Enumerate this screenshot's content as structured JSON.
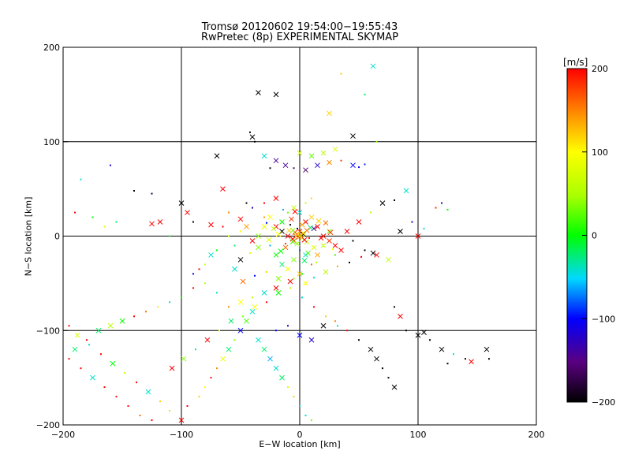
{
  "chart_data": {
    "type": "scatter",
    "title": "Tromsø 20120602 19:54:00−19:55:43",
    "subtitle": "RwPretec (8p) EXPERIMENTAL SKYMAP",
    "xlabel": "E−W location [km]",
    "ylabel": "N−S location [km]",
    "xlim": [
      -200,
      200
    ],
    "ylim": [
      -200,
      200
    ],
    "x_ticks": [
      -200,
      -100,
      0,
      100,
      200
    ],
    "y_ticks": [
      -200,
      -100,
      0,
      100,
      200
    ],
    "grid": true,
    "colorbar": {
      "label": "[m/s]",
      "range": [
        -200,
        200
      ],
      "ticks": [
        -200,
        -100,
        0,
        100,
        200
      ],
      "colormap": "rainbow: black → purple → blue → cyan → green → yellow → orange → red"
    },
    "markers": [
      "dot",
      "cross"
    ],
    "points": [
      [
        -35,
        152,
        -200,
        "x"
      ],
      [
        -20,
        150,
        -200,
        "x"
      ],
      [
        35,
        172,
        120,
        "d"
      ],
      [
        62,
        180,
        -40,
        "x"
      ],
      [
        25,
        130,
        120,
        "x"
      ],
      [
        45,
        106,
        -200,
        "x"
      ],
      [
        -42,
        110,
        -200,
        "d"
      ],
      [
        -40,
        105,
        -200,
        "x"
      ],
      [
        -70,
        85,
        -200,
        "x"
      ],
      [
        -38,
        100,
        -200,
        "d"
      ],
      [
        55,
        150,
        -20,
        "d"
      ],
      [
        65,
        100,
        40,
        "d"
      ],
      [
        -20,
        80,
        -140,
        "x"
      ],
      [
        -12,
        75,
        -140,
        "x"
      ],
      [
        -5,
        72,
        -160,
        "d"
      ],
      [
        5,
        70,
        -160,
        "x"
      ],
      [
        15,
        75,
        -120,
        "x"
      ],
      [
        25,
        78,
        150,
        "x"
      ],
      [
        35,
        80,
        180,
        "d"
      ],
      [
        45,
        75,
        -100,
        "x"
      ],
      [
        50,
        73,
        -110,
        "d"
      ],
      [
        55,
        76,
        -90,
        "d"
      ],
      [
        -30,
        85,
        -40,
        "x"
      ],
      [
        -25,
        72,
        -200,
        "d"
      ],
      [
        0,
        88,
        70,
        "x"
      ],
      [
        10,
        85,
        30,
        "x"
      ],
      [
        20,
        88,
        60,
        "x"
      ],
      [
        30,
        92,
        80,
        "x"
      ],
      [
        -160,
        75,
        -120,
        "d"
      ],
      [
        -185,
        60,
        -40,
        "d"
      ],
      [
        -140,
        48,
        -200,
        "d"
      ],
      [
        -125,
        45,
        -180,
        "d"
      ],
      [
        -100,
        35,
        -200,
        "x"
      ],
      [
        -95,
        25,
        200,
        "x"
      ],
      [
        -90,
        15,
        -200,
        "d"
      ],
      [
        -118,
        15,
        200,
        "x"
      ],
      [
        -125,
        13,
        200,
        "x"
      ],
      [
        -110,
        0,
        0,
        "d"
      ],
      [
        -65,
        50,
        200,
        "x"
      ],
      [
        -75,
        12,
        200,
        "x"
      ],
      [
        -50,
        18,
        200,
        "x"
      ],
      [
        -60,
        25,
        150,
        "d"
      ],
      [
        -45,
        35,
        -200,
        "d"
      ],
      [
        -40,
        30,
        -120,
        "d"
      ],
      [
        -30,
        35,
        200,
        "d"
      ],
      [
        -25,
        20,
        100,
        "x"
      ],
      [
        -20,
        10,
        200,
        "x"
      ],
      [
        -15,
        5,
        -200,
        "x"
      ],
      [
        -10,
        0,
        200,
        "x"
      ],
      [
        -5,
        -5,
        150,
        "x"
      ],
      [
        0,
        5,
        180,
        "x"
      ],
      [
        5,
        15,
        200,
        "x"
      ],
      [
        10,
        20,
        120,
        "x"
      ],
      [
        15,
        10,
        200,
        "x"
      ],
      [
        20,
        0,
        200,
        "x"
      ],
      [
        25,
        -5,
        180,
        "x"
      ],
      [
        30,
        -10,
        200,
        "x"
      ],
      [
        35,
        -15,
        200,
        "x"
      ],
      [
        -5,
        30,
        60,
        "x"
      ],
      [
        -10,
        25,
        30,
        "d"
      ],
      [
        -15,
        15,
        0,
        "x"
      ],
      [
        0,
        25,
        -40,
        "x"
      ],
      [
        5,
        35,
        70,
        "d"
      ],
      [
        10,
        40,
        120,
        "d"
      ],
      [
        -20,
        40,
        200,
        "x"
      ],
      [
        -30,
        10,
        90,
        "x"
      ],
      [
        -35,
        0,
        40,
        "x"
      ],
      [
        -25,
        -10,
        -60,
        "d"
      ],
      [
        -20,
        -20,
        0,
        "x"
      ],
      [
        -15,
        -30,
        -20,
        "x"
      ],
      [
        -10,
        -35,
        100,
        "x"
      ],
      [
        -5,
        -25,
        40,
        "x"
      ],
      [
        0,
        -15,
        -80,
        "d"
      ],
      [
        5,
        -20,
        -40,
        "x"
      ],
      [
        10,
        -30,
        160,
        "d"
      ],
      [
        15,
        -20,
        140,
        "x"
      ],
      [
        20,
        -10,
        60,
        "x"
      ],
      [
        25,
        5,
        30,
        "x"
      ],
      [
        -8,
        12,
        -200,
        "d"
      ],
      [
        -2,
        8,
        -180,
        "d"
      ],
      [
        3,
        2,
        -200,
        "x"
      ],
      [
        8,
        -2,
        200,
        "d"
      ],
      [
        -12,
        -8,
        180,
        "d"
      ],
      [
        12,
        8,
        -140,
        "x"
      ],
      [
        0,
        -40,
        120,
        "x"
      ],
      [
        -5,
        -45,
        40,
        "d"
      ],
      [
        5,
        -50,
        100,
        "x"
      ],
      [
        -20,
        -55,
        200,
        "x"
      ],
      [
        -30,
        -60,
        -40,
        "x"
      ],
      [
        -40,
        -65,
        60,
        "d"
      ],
      [
        -50,
        -70,
        100,
        "x"
      ],
      [
        -60,
        -75,
        150,
        "d"
      ],
      [
        -70,
        -60,
        -40,
        "d"
      ],
      [
        -80,
        -50,
        60,
        "d"
      ],
      [
        -90,
        -55,
        200,
        "d"
      ],
      [
        -100,
        -65,
        0,
        "d"
      ],
      [
        -110,
        -70,
        -40,
        "d"
      ],
      [
        -120,
        -75,
        80,
        "d"
      ],
      [
        -130,
        -80,
        160,
        "d"
      ],
      [
        -140,
        -85,
        200,
        "d"
      ],
      [
        -150,
        -90,
        0,
        "x"
      ],
      [
        -160,
        -95,
        60,
        "x"
      ],
      [
        -170,
        -100,
        -20,
        "x"
      ],
      [
        -180,
        -110,
        200,
        "d"
      ],
      [
        -190,
        -120,
        -20,
        "x"
      ],
      [
        -195,
        -130,
        200,
        "d"
      ],
      [
        -185,
        -140,
        200,
        "d"
      ],
      [
        -175,
        -150,
        -40,
        "x"
      ],
      [
        -165,
        -160,
        200,
        "d"
      ],
      [
        -155,
        -170,
        200,
        "d"
      ],
      [
        -145,
        -180,
        200,
        "d"
      ],
      [
        -135,
        -190,
        160,
        "d"
      ],
      [
        -125,
        -195,
        200,
        "d"
      ],
      [
        -110,
        -185,
        60,
        "d"
      ],
      [
        -100,
        -195,
        200,
        "x"
      ],
      [
        -95,
        -180,
        200,
        "d"
      ],
      [
        -85,
        -170,
        120,
        "d"
      ],
      [
        -80,
        -160,
        100,
        "d"
      ],
      [
        -75,
        -150,
        200,
        "d"
      ],
      [
        -70,
        -140,
        150,
        "d"
      ],
      [
        -65,
        -130,
        90,
        "x"
      ],
      [
        -60,
        -120,
        -20,
        "x"
      ],
      [
        -55,
        -110,
        40,
        "d"
      ],
      [
        -50,
        -100,
        -100,
        "x"
      ],
      [
        -45,
        -90,
        20,
        "x"
      ],
      [
        -40,
        -80,
        -40,
        "x"
      ],
      [
        -35,
        -110,
        -40,
        "x"
      ],
      [
        -30,
        -120,
        -20,
        "x"
      ],
      [
        -25,
        -130,
        -60,
        "x"
      ],
      [
        -20,
        -140,
        -40,
        "x"
      ],
      [
        -15,
        -150,
        -20,
        "x"
      ],
      [
        -10,
        -160,
        80,
        "d"
      ],
      [
        -5,
        -170,
        120,
        "d"
      ],
      [
        0,
        -180,
        -40,
        "d"
      ],
      [
        5,
        -190,
        -40,
        "d"
      ],
      [
        10,
        -195,
        40,
        "d"
      ],
      [
        -20,
        -100,
        -100,
        "d"
      ],
      [
        -10,
        -95,
        -120,
        "d"
      ],
      [
        0,
        -105,
        -100,
        "x"
      ],
      [
        10,
        -110,
        -120,
        "x"
      ],
      [
        20,
        -95,
        -200,
        "x"
      ],
      [
        30,
        -90,
        150,
        "d"
      ],
      [
        40,
        -100,
        200,
        "d"
      ],
      [
        50,
        -110,
        -200,
        "d"
      ],
      [
        60,
        -120,
        -200,
        "x"
      ],
      [
        65,
        -130,
        -200,
        "x"
      ],
      [
        70,
        -140,
        -200,
        "d"
      ],
      [
        75,
        -150,
        -200,
        "d"
      ],
      [
        80,
        -160,
        -200,
        "x"
      ],
      [
        90,
        -100,
        -200,
        "d"
      ],
      [
        100,
        -105,
        -200,
        "x"
      ],
      [
        110,
        -110,
        -200,
        "d"
      ],
      [
        120,
        -120,
        -200,
        "x"
      ],
      [
        130,
        -125,
        -40,
        "d"
      ],
      [
        140,
        -130,
        -200,
        "d"
      ],
      [
        145,
        -133,
        200,
        "x"
      ],
      [
        158,
        -120,
        -200,
        "x"
      ],
      [
        160,
        -130,
        -200,
        "d"
      ],
      [
        125,
        -135,
        -200,
        "d"
      ],
      [
        105,
        -102,
        -200,
        "x"
      ],
      [
        85,
        5,
        -200,
        "x"
      ],
      [
        100,
        0,
        200,
        "x"
      ],
      [
        105,
        8,
        -40,
        "d"
      ],
      [
        95,
        15,
        -120,
        "d"
      ],
      [
        90,
        48,
        -40,
        "x"
      ],
      [
        80,
        38,
        -200,
        "d"
      ],
      [
        70,
        35,
        -200,
        "x"
      ],
      [
        60,
        25,
        60,
        "d"
      ],
      [
        50,
        15,
        200,
        "x"
      ],
      [
        40,
        5,
        200,
        "x"
      ],
      [
        45,
        -5,
        -200,
        "d"
      ],
      [
        55,
        -15,
        -200,
        "d"
      ],
      [
        65,
        -20,
        200,
        "x"
      ],
      [
        75,
        -25,
        60,
        "x"
      ],
      [
        85,
        -85,
        200,
        "x"
      ],
      [
        80,
        -75,
        -200,
        "d"
      ],
      [
        115,
        30,
        180,
        "d"
      ],
      [
        120,
        35,
        -120,
        "d"
      ],
      [
        125,
        28,
        0,
        "d"
      ],
      [
        -190,
        25,
        200,
        "d"
      ],
      [
        -175,
        20,
        0,
        "d"
      ],
      [
        -165,
        10,
        80,
        "d"
      ],
      [
        -155,
        15,
        -20,
        "d"
      ],
      [
        -195,
        -95,
        200,
        "d"
      ],
      [
        -188,
        -105,
        80,
        "x"
      ],
      [
        -178,
        -115,
        -40,
        "d"
      ],
      [
        -168,
        -125,
        200,
        "d"
      ],
      [
        -158,
        -135,
        0,
        "x"
      ],
      [
        -148,
        -145,
        60,
        "d"
      ],
      [
        -138,
        -155,
        200,
        "d"
      ],
      [
        -128,
        -165,
        -40,
        "x"
      ],
      [
        -118,
        -175,
        120,
        "d"
      ],
      [
        -108,
        -140,
        200,
        "x"
      ],
      [
        -98,
        -130,
        40,
        "x"
      ],
      [
        -88,
        -120,
        -40,
        "d"
      ],
      [
        -78,
        -110,
        200,
        "x"
      ],
      [
        -68,
        -100,
        100,
        "d"
      ],
      [
        -58,
        -90,
        -20,
        "x"
      ],
      [
        -48,
        -85,
        40,
        "d"
      ],
      [
        -38,
        -75,
        100,
        "x"
      ],
      [
        -28,
        -70,
        200,
        "d"
      ],
      [
        -18,
        -60,
        0,
        "x"
      ],
      [
        -8,
        -55,
        60,
        "d"
      ],
      [
        2,
        -65,
        -40,
        "d"
      ],
      [
        12,
        -75,
        200,
        "d"
      ],
      [
        22,
        -85,
        120,
        "d"
      ],
      [
        32,
        -95,
        -40,
        "d"
      ],
      [
        -3,
        0,
        150,
        "x"
      ],
      [
        3,
        3,
        100,
        "x"
      ],
      [
        -6,
        -3,
        200,
        "x"
      ],
      [
        6,
        -6,
        60,
        "x"
      ],
      [
        -9,
        6,
        120,
        "x"
      ],
      [
        9,
        9,
        -20,
        "x"
      ],
      [
        -12,
        -12,
        160,
        "x"
      ],
      [
        12,
        -12,
        80,
        "x"
      ],
      [
        -2,
        -8,
        40,
        "x"
      ],
      [
        2,
        12,
        140,
        "x"
      ],
      [
        -7,
        18,
        180,
        "x"
      ],
      [
        7,
        -18,
        20,
        "x"
      ],
      [
        -18,
        2,
        100,
        "x"
      ],
      [
        18,
        -2,
        200,
        "x"
      ],
      [
        -22,
        8,
        60,
        "x"
      ],
      [
        22,
        14,
        160,
        "x"
      ],
      [
        -16,
        -16,
        0,
        "x"
      ],
      [
        16,
        16,
        120,
        "x"
      ],
      [
        -26,
        -4,
        80,
        "x"
      ],
      [
        26,
        4,
        180,
        "x"
      ],
      [
        -4,
        26,
        200,
        "x"
      ],
      [
        4,
        -26,
        -20,
        "x"
      ],
      [
        -30,
        20,
        140,
        "d"
      ],
      [
        30,
        -20,
        20,
        "d"
      ],
      [
        -14,
        28,
        -60,
        "d"
      ],
      [
        14,
        -28,
        60,
        "d"
      ],
      [
        -28,
        14,
        -100,
        "d"
      ],
      [
        28,
        -14,
        100,
        "d"
      ],
      [
        -1,
        -1,
        200,
        "x"
      ],
      [
        1,
        1,
        150,
        "x"
      ],
      [
        -2,
        2,
        100,
        "x"
      ],
      [
        2,
        -2,
        60,
        "x"
      ],
      [
        -4,
        4,
        180,
        "x"
      ],
      [
        4,
        -4,
        200,
        "x"
      ],
      [
        0,
        0,
        120,
        "x"
      ],
      [
        -6,
        6,
        40,
        "x"
      ],
      [
        6,
        6,
        160,
        "x"
      ],
      [
        -6,
        -6,
        20,
        "x"
      ],
      [
        -40,
        -5,
        200,
        "x"
      ],
      [
        -45,
        10,
        140,
        "x"
      ],
      [
        -50,
        5,
        100,
        "d"
      ],
      [
        -55,
        -10,
        -20,
        "d"
      ],
      [
        -60,
        0,
        60,
        "d"
      ],
      [
        -65,
        10,
        200,
        "d"
      ],
      [
        -70,
        -15,
        0,
        "d"
      ],
      [
        -75,
        -20,
        -40,
        "x"
      ],
      [
        -80,
        -30,
        80,
        "d"
      ],
      [
        -85,
        -35,
        200,
        "d"
      ],
      [
        -90,
        -40,
        -100,
        "d"
      ],
      [
        -55,
        -35,
        -40,
        "x"
      ],
      [
        -50,
        -25,
        -200,
        "x"
      ],
      [
        -42,
        -18,
        80,
        "d"
      ],
      [
        -35,
        -12,
        40,
        "x"
      ],
      [
        -48,
        -48,
        160,
        "x"
      ],
      [
        -38,
        -42,
        -100,
        "d"
      ],
      [
        -28,
        -38,
        120,
        "d"
      ],
      [
        -18,
        -45,
        40,
        "x"
      ],
      [
        -8,
        -48,
        200,
        "x"
      ],
      [
        2,
        -40,
        0,
        "d"
      ],
      [
        12,
        -44,
        -40,
        "d"
      ],
      [
        22,
        -38,
        60,
        "x"
      ],
      [
        32,
        -32,
        140,
        "d"
      ],
      [
        42,
        -28,
        -200,
        "d"
      ],
      [
        52,
        -22,
        200,
        "d"
      ],
      [
        62,
        -18,
        -200,
        "x"
      ]
    ]
  }
}
